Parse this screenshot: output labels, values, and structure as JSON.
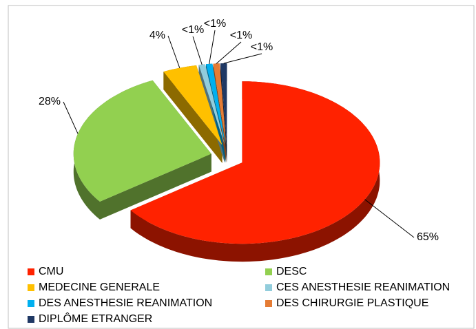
{
  "chart_data": {
    "type": "pie3d",
    "categories": [
      "CMU",
      "DESC",
      "MEDECINE GENERALE",
      "CES ANESTHESIE REANIMATION",
      "DES ANESTHESIE REANIMATION",
      "DES CHIRURGIE PLASTIQUE",
      "DIPLÔME ETRANGER"
    ],
    "values": [
      65,
      28,
      4,
      0.75,
      0.75,
      0.75,
      0.75
    ],
    "value_labels": [
      "65%",
      "28%",
      "4%",
      "<1%",
      "<1%",
      "<1%",
      "<1%"
    ],
    "colors": [
      "#ff2200",
      "#92d050",
      "#ffc000",
      "#92cddc",
      "#00b0f0",
      "#e57c34",
      "#1f3864"
    ],
    "legend": "bottom"
  }
}
